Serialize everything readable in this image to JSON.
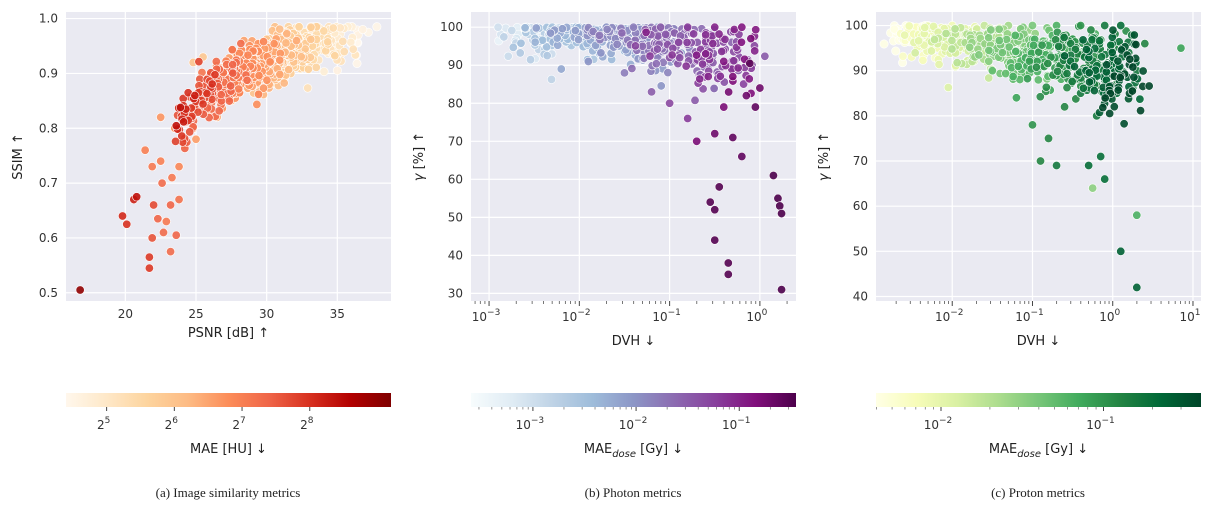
{
  "panels": [
    {
      "caption": "(a) Image similarity metrics",
      "chart_data": {
        "type": "scatter",
        "xlabel": "PSNR [dB]",
        "xlabel_arrow": "↑",
        "ylabel": "SSIM",
        "ylabel_arrow": "↑",
        "xscale": "linear",
        "yscale": "linear",
        "xlim": [
          15.8,
          38.8
        ],
        "ylim": [
          0.485,
          1.012
        ],
        "xticks": [
          20,
          25,
          30,
          35
        ],
        "xtick_labels": [
          "20",
          "25",
          "30",
          "35"
        ],
        "yticks": [
          0.5,
          0.6,
          0.7,
          0.8,
          0.9,
          1.0
        ],
        "ytick_labels": [
          "0.5",
          "0.6",
          "0.7",
          "0.8",
          "0.9",
          "1.0"
        ],
        "grid": true,
        "colormap": "OrRd",
        "n_points_approx": 900,
        "trend": "SSIM rises with PSNR; higher MAE at low PSNR",
        "points": [
          [
            16.8,
            0.505,
            9.0
          ],
          [
            19.8,
            0.64,
            8.1
          ],
          [
            20.1,
            0.625,
            8.0
          ],
          [
            20.6,
            0.67,
            8.2
          ],
          [
            20.8,
            0.675,
            8.4
          ],
          [
            21.7,
            0.565,
            7.9
          ],
          [
            21.7,
            0.545,
            7.9
          ],
          [
            21.9,
            0.6,
            7.6
          ],
          [
            22.0,
            0.66,
            7.7
          ],
          [
            22.3,
            0.635,
            7.4
          ],
          [
            22.7,
            0.61,
            7.3
          ],
          [
            22.9,
            0.63,
            7.1
          ],
          [
            23.2,
            0.575,
            7.3
          ],
          [
            23.6,
            0.605,
            7.4
          ],
          [
            23.2,
            0.66,
            7.4
          ],
          [
            23.8,
            0.67,
            7.2
          ],
          [
            21.4,
            0.76,
            7.0
          ],
          [
            21.9,
            0.73,
            7.1
          ],
          [
            22.6,
            0.7,
            7.3
          ],
          [
            22.5,
            0.74,
            7.0
          ],
          [
            23.3,
            0.71,
            7.1
          ],
          [
            23.8,
            0.73,
            6.9
          ],
          [
            24.2,
            0.77,
            6.8
          ],
          [
            24.8,
            0.8,
            6.7
          ],
          [
            22.5,
            0.82,
            6.7
          ],
          [
            23.5,
            0.8,
            6.8
          ],
          [
            24.5,
            0.83,
            6.5
          ],
          [
            25.2,
            0.84,
            6.4
          ],
          [
            25.8,
            0.86,
            6.3
          ],
          [
            26.2,
            0.89,
            6.1
          ],
          [
            26.8,
            0.91,
            5.8
          ],
          [
            27.5,
            0.9,
            5.9
          ],
          [
            28.2,
            0.92,
            5.7
          ],
          [
            29.0,
            0.93,
            5.5
          ],
          [
            29.8,
            0.94,
            5.3
          ],
          [
            30.6,
            0.945,
            5.1
          ],
          [
            31.5,
            0.955,
            5.0
          ],
          [
            32.5,
            0.96,
            4.9
          ],
          [
            33.5,
            0.965,
            4.8
          ],
          [
            34.5,
            0.97,
            4.7
          ],
          [
            35.0,
            0.975,
            4.6
          ],
          [
            36.8,
            0.98,
            4.6
          ],
          [
            37.2,
            0.975,
            4.5
          ],
          [
            37.8,
            0.985,
            4.5
          ],
          [
            27.0,
            0.87,
            6.1
          ],
          [
            28.0,
            0.88,
            6.0
          ],
          [
            26.0,
            0.83,
            6.4
          ],
          [
            27.5,
            0.85,
            6.2
          ],
          [
            29.0,
            0.89,
            5.8
          ],
          [
            30.5,
            0.91,
            5.5
          ],
          [
            25.0,
            0.78,
            6.6
          ],
          [
            26.5,
            0.82,
            6.3
          ],
          [
            31.5,
            0.92,
            5.4
          ],
          [
            32.8,
            0.93,
            5.2
          ],
          [
            24.8,
            0.92,
            6.0
          ],
          [
            25.5,
            0.93,
            5.9
          ]
        ]
      },
      "colorbar": {
        "label": "MAE [HU]",
        "label_arrow": "↓",
        "scale": "log2",
        "range": [
          4.4,
          9.2
        ],
        "ticks": [
          5,
          6,
          7,
          8
        ],
        "tick_base": "2",
        "tick_exponents": [
          "5",
          "6",
          "7",
          "8"
        ],
        "colors": [
          "#fff7ec",
          "#fee8c8",
          "#fdd49e",
          "#fdbb84",
          "#fc8d59",
          "#ef6548",
          "#d7301f",
          "#b30000",
          "#7f0000"
        ]
      }
    },
    {
      "caption": "(b) Photon metrics",
      "chart_data": {
        "type": "scatter",
        "xlabel": "DVH",
        "xlabel_arrow": "↓",
        "ylabel": "γ [%]",
        "ylabel_arrow": "↑",
        "xscale": "log10",
        "yscale": "linear",
        "xlim": [
          -3.2,
          0.4
        ],
        "ylim": [
          28,
          104
        ],
        "xticks": [
          -3,
          -2,
          -1,
          0
        ],
        "tick_base": "10",
        "xtick_exponents": [
          "−3",
          "−2",
          "−1",
          "0"
        ],
        "yticks": [
          30,
          40,
          50,
          60,
          70,
          80,
          90,
          100
        ],
        "ytick_labels": [
          "30",
          "40",
          "50",
          "60",
          "70",
          "80",
          "90",
          "100"
        ],
        "grid": true,
        "colormap": "BuPu",
        "n_points_approx": 700,
        "points": [
          [
            -2.9,
            100,
            -3.0
          ],
          [
            -2.6,
            100,
            -2.8
          ],
          [
            -2.3,
            100,
            -2.5
          ],
          [
            -2.0,
            100,
            -2.3
          ],
          [
            -1.7,
            100,
            -2.0
          ],
          [
            -1.4,
            100,
            -1.8
          ],
          [
            -1.1,
            100,
            -1.5
          ],
          [
            -0.8,
            100,
            -1.2
          ],
          [
            -0.5,
            100,
            -1.0
          ],
          [
            -0.2,
            100,
            -0.9
          ],
          [
            -2.2,
            89,
            -2.2
          ],
          [
            -1.9,
            91,
            -2.0
          ],
          [
            -1.5,
            88,
            -1.8
          ],
          [
            -1.2,
            83,
            -1.5
          ],
          [
            -1.0,
            80,
            -1.3
          ],
          [
            -0.8,
            76,
            -1.2
          ],
          [
            -0.6,
            93,
            -1.0
          ],
          [
            -0.4,
            91,
            -0.9
          ],
          [
            -0.3,
            87,
            -0.8
          ],
          [
            -0.15,
            82,
            -0.7
          ],
          [
            -0.7,
            70,
            -0.8
          ],
          [
            -0.5,
            72,
            -0.7
          ],
          [
            -0.4,
            79,
            -0.8
          ],
          [
            -0.3,
            71,
            -0.6
          ],
          [
            -0.2,
            66,
            -0.6
          ],
          [
            -0.45,
            58,
            -0.5
          ],
          [
            -0.55,
            54,
            -0.5
          ],
          [
            -0.5,
            52,
            -0.5
          ],
          [
            -0.5,
            44,
            -0.5
          ],
          [
            -0.35,
            38,
            -0.5
          ],
          [
            -0.35,
            35,
            -0.5
          ],
          [
            0.15,
            61,
            -0.4
          ],
          [
            0.2,
            55,
            -0.4
          ],
          [
            0.22,
            53,
            -0.35
          ],
          [
            0.24,
            51,
            -0.3
          ],
          [
            0.24,
            31,
            -0.2
          ],
          [
            -0.1,
            97,
            -0.8
          ],
          [
            0.0,
            84,
            -0.7
          ],
          [
            -0.05,
            79,
            -0.6
          ],
          [
            -1.3,
            95,
            -1.6
          ],
          [
            -1.6,
            97,
            -1.9
          ],
          [
            -0.9,
            96,
            -1.3
          ],
          [
            -0.6,
            98,
            -1.1
          ],
          [
            -1.0,
            92,
            -1.4
          ]
        ]
      },
      "colorbar": {
        "label": "MAE",
        "label_sub": "dose",
        "label_unit": " [Gy]",
        "label_arrow": "↓",
        "scale": "log10",
        "range": [
          -3.6,
          -0.45
        ],
        "ticks": [
          -3,
          -2,
          -1
        ],
        "tick_base": "10",
        "tick_exponents": [
          "−3",
          "−2",
          "−1"
        ],
        "colors": [
          "#f7fcfd",
          "#e0ecf4",
          "#bfd3e6",
          "#9ebcda",
          "#8c96c6",
          "#8c6bb1",
          "#88419d",
          "#810f7c",
          "#4d004b"
        ]
      }
    },
    {
      "caption": "(c) Proton metrics",
      "chart_data": {
        "type": "scatter",
        "xlabel": "DVH",
        "xlabel_arrow": "↓",
        "ylabel": "γ [%]",
        "ylabel_arrow": "↑",
        "xscale": "log10",
        "yscale": "linear",
        "xlim": [
          -2.95,
          1.1
        ],
        "ylim": [
          39,
          103
        ],
        "xticks": [
          -2,
          -1,
          0,
          1
        ],
        "tick_base": "10",
        "xtick_exponents": [
          "−2",
          "−1",
          "0",
          "1"
        ],
        "yticks": [
          40,
          50,
          60,
          70,
          80,
          90,
          100
        ],
        "ytick_labels": [
          "40",
          "50",
          "60",
          "70",
          "80",
          "90",
          "100"
        ],
        "grid": true,
        "colormap": "YlGn",
        "n_points_approx": 900,
        "points": [
          [
            -2.5,
            98,
            -2.3
          ],
          [
            -2.3,
            100,
            -2.2
          ],
          [
            -2.0,
            100,
            -2.1
          ],
          [
            -1.8,
            99,
            -2.0
          ],
          [
            -1.6,
            100,
            -1.8
          ],
          [
            -1.3,
            100,
            -1.6
          ],
          [
            -1.0,
            100,
            -1.4
          ],
          [
            -0.7,
            100,
            -1.2
          ],
          [
            -0.4,
            100,
            -1.0
          ],
          [
            -0.1,
            100,
            -0.8
          ],
          [
            0.1,
            100,
            -0.7
          ],
          [
            -1.5,
            90,
            -1.3
          ],
          [
            -1.2,
            84,
            -1.1
          ],
          [
            -1.0,
            78,
            -1.0
          ],
          [
            -0.8,
            75,
            -0.9
          ],
          [
            -0.6,
            82,
            -0.9
          ],
          [
            -0.4,
            85,
            -0.8
          ],
          [
            -0.2,
            80,
            -0.8
          ],
          [
            0.0,
            92,
            -0.7
          ],
          [
            0.05,
            85,
            -0.7
          ],
          [
            -0.9,
            70,
            -0.9
          ],
          [
            -0.7,
            69,
            -0.8
          ],
          [
            -0.3,
            69,
            -0.7
          ],
          [
            -0.15,
            71,
            -0.7
          ],
          [
            -0.1,
            66,
            -0.7
          ],
          [
            0.3,
            58,
            -1.2
          ],
          [
            0.1,
            50,
            -0.6
          ],
          [
            0.3,
            42,
            -0.6
          ],
          [
            -0.25,
            64,
            -1.5
          ],
          [
            0.85,
            95,
            -1.1
          ],
          [
            0.2,
            94,
            -0.8
          ],
          [
            0.4,
            96,
            -0.9
          ],
          [
            0.3,
            90,
            -0.8
          ],
          [
            0.25,
            86,
            -0.8
          ],
          [
            -1.8,
            96,
            -1.9
          ],
          [
            -1.4,
            93,
            -1.5
          ],
          [
            -0.5,
            97,
            -1.0
          ],
          [
            -0.3,
            91,
            -0.9
          ],
          [
            -0.1,
            88,
            -0.8
          ],
          [
            -2.0,
            97,
            -2.0
          ]
        ]
      },
      "colorbar": {
        "label": "MAE",
        "label_sub": "dose",
        "label_unit": " [Gy]",
        "label_arrow": "↓",
        "scale": "log10",
        "range": [
          -2.4,
          -0.4
        ],
        "ticks": [
          -2,
          -1
        ],
        "tick_base": "10",
        "tick_exponents": [
          "−2",
          "−1"
        ],
        "colors": [
          "#ffffe5",
          "#f7fcb9",
          "#d9f0a3",
          "#addd8e",
          "#78c679",
          "#41ab5d",
          "#238443",
          "#006837",
          "#004529"
        ]
      }
    }
  ]
}
